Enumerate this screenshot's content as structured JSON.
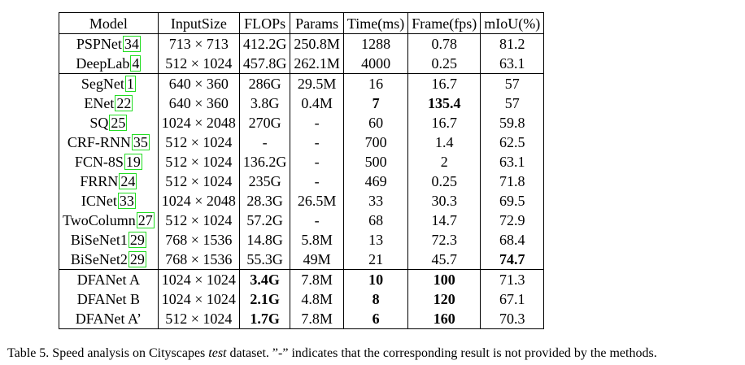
{
  "table": {
    "headers": [
      "Model",
      "InputSize",
      "FLOPs",
      "Params",
      "Time(ms)",
      "Frame(fps)",
      "mIoU(%)"
    ],
    "groups": [
      [
        {
          "model": "PSPNet",
          "ref": "34",
          "cells": [
            "713 × 713",
            "412.2G",
            "250.8M",
            "1288",
            "0.78",
            "81.2"
          ],
          "bold": []
        },
        {
          "model": "DeepLab",
          "ref": "4",
          "cells": [
            "512 × 1024",
            "457.8G",
            "262.1M",
            "4000",
            "0.25",
            "63.1"
          ],
          "bold": []
        }
      ],
      [
        {
          "model": "SegNet",
          "ref": "1",
          "cells": [
            "640 × 360",
            "286G",
            "29.5M",
            "16",
            "16.7",
            "57"
          ],
          "bold": []
        },
        {
          "model": "ENet",
          "ref": "22",
          "cells": [
            "640 × 360",
            "3.8G",
            "0.4M",
            "7",
            "135.4",
            "57"
          ],
          "bold": [
            3,
            4
          ]
        },
        {
          "model": "SQ",
          "ref": "25",
          "cells": [
            "1024 × 2048",
            "270G",
            "-",
            "60",
            "16.7",
            "59.8"
          ],
          "bold": []
        },
        {
          "model": "CRF-RNN",
          "ref": "35",
          "cells": [
            "512 × 1024",
            "-",
            "-",
            "700",
            "1.4",
            "62.5"
          ],
          "bold": []
        },
        {
          "model": "FCN-8S",
          "ref": "19",
          "cells": [
            "512 × 1024",
            "136.2G",
            "-",
            "500",
            "2",
            "63.1"
          ],
          "bold": []
        },
        {
          "model": "FRRN",
          "ref": "24",
          "cells": [
            "512 × 1024",
            "235G",
            "-",
            "469",
            "0.25",
            "71.8"
          ],
          "bold": []
        },
        {
          "model": "ICNet",
          "ref": "33",
          "cells": [
            "1024 × 2048",
            "28.3G",
            "26.5M",
            "33",
            "30.3",
            "69.5"
          ],
          "bold": []
        },
        {
          "model": "TwoColumn",
          "ref": "27",
          "cells": [
            "512 × 1024",
            "57.2G",
            "-",
            "68",
            "14.7",
            "72.9"
          ],
          "bold": []
        },
        {
          "model": "BiSeNet1",
          "ref": "29",
          "cells": [
            "768 × 1536",
            "14.8G",
            "5.8M",
            "13",
            "72.3",
            "68.4"
          ],
          "bold": []
        },
        {
          "model": "BiSeNet2",
          "ref": "29",
          "cells": [
            "768 × 1536",
            "55.3G",
            "49M",
            "21",
            "45.7",
            "74.7"
          ],
          "bold": [
            5
          ]
        }
      ],
      [
        {
          "model": "DFANet A",
          "ref": null,
          "cells": [
            "1024 × 1024",
            "3.4G",
            "7.8M",
            "10",
            "100",
            "71.3"
          ],
          "bold": [
            1,
            3,
            4
          ]
        },
        {
          "model": "DFANet B",
          "ref": null,
          "cells": [
            "1024 × 1024",
            "2.1G",
            "4.8M",
            "8",
            "120",
            "67.1"
          ],
          "bold": [
            1,
            3,
            4
          ]
        },
        {
          "model": "DFANet A’",
          "ref": null,
          "cells": [
            "512 × 1024",
            "1.7G",
            "7.8M",
            "6",
            "160",
            "70.3"
          ],
          "bold": [
            1,
            3,
            4
          ]
        }
      ]
    ]
  },
  "caption": {
    "part1": "Table 5. Speed analysis on Cityscapes ",
    "italic": "test",
    "part2": " dataset. ”-” indicates that the corresponding result is not provided by the methods."
  }
}
